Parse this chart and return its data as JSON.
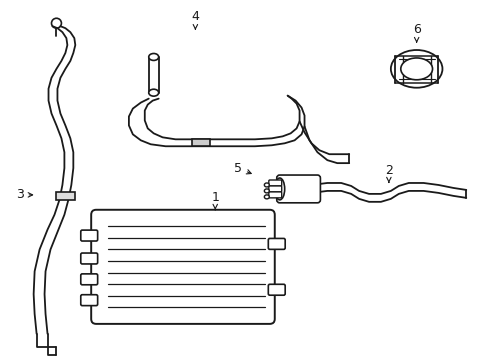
{
  "background_color": "#ffffff",
  "line_color": "#1a1a1a",
  "figsize": [
    4.89,
    3.6
  ],
  "dpi": 100,
  "labels": {
    "1": [
      215,
      215,
      230,
      195
    ],
    "2": [
      390,
      175,
      390,
      158
    ],
    "3": [
      38,
      195,
      20,
      195
    ],
    "4": [
      195,
      30,
      195,
      18
    ],
    "5": [
      258,
      168,
      240,
      168
    ],
    "6": [
      415,
      30,
      415,
      18
    ]
  }
}
